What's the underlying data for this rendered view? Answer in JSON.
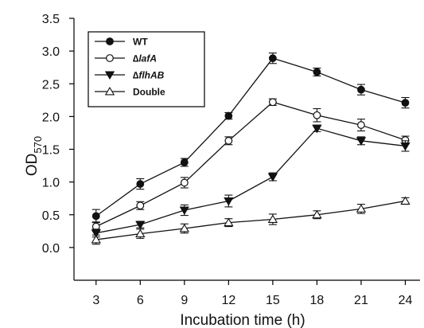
{
  "chart_data": {
    "type": "line",
    "title": "",
    "xlabel": "Incubation time (h)",
    "ylabel_main": "OD",
    "ylabel_sub": "570",
    "x": [
      3,
      6,
      9,
      12,
      15,
      18,
      21,
      24
    ],
    "xlim": [
      1.5,
      25
    ],
    "ylim": [
      -0.5,
      3.5
    ],
    "yticks": [
      0.0,
      0.5,
      1.0,
      1.5,
      2.0,
      2.5,
      3.0,
      3.5
    ],
    "ytick_labels": [
      "0.0",
      "0.5",
      "1.0",
      "1.5",
      "2.0",
      "2.5",
      "3.0",
      "3.5"
    ],
    "xtick_labels": [
      "3",
      "6",
      "9",
      "12",
      "15",
      "18",
      "21",
      "24"
    ],
    "grid": false,
    "legend_position": "top-left",
    "series": [
      {
        "name": "WT",
        "legend_style": "bold",
        "marker": "circle-filled",
        "values": [
          0.48,
          0.97,
          1.3,
          2.01,
          2.89,
          2.68,
          2.41,
          2.21
        ],
        "errors": [
          0.1,
          0.08,
          0.06,
          0.05,
          0.08,
          0.06,
          0.08,
          0.08
        ]
      },
      {
        "name": "∆lafA",
        "legend_style": "bold-italic",
        "marker": "circle-open",
        "values": [
          0.32,
          0.64,
          0.99,
          1.63,
          2.22,
          2.02,
          1.87,
          1.64
        ],
        "errors": [
          0.07,
          0.06,
          0.08,
          0.06,
          0.05,
          0.1,
          0.09,
          0.06
        ]
      },
      {
        "name": "∆flhAB",
        "legend_style": "bold-italic",
        "marker": "triangle-down-filled",
        "values": [
          0.22,
          0.35,
          0.57,
          0.71,
          1.08,
          1.82,
          1.63,
          1.55
        ],
        "errors": [
          0.06,
          0.05,
          0.08,
          0.09,
          0.06,
          0.05,
          0.06,
          0.08
        ]
      },
      {
        "name": "Double",
        "legend_style": "bold",
        "marker": "triangle-up-open",
        "values": [
          0.12,
          0.21,
          0.29,
          0.38,
          0.43,
          0.5,
          0.59,
          0.71
        ],
        "errors": [
          0.07,
          0.07,
          0.07,
          0.06,
          0.08,
          0.06,
          0.07,
          0.05
        ]
      }
    ]
  }
}
